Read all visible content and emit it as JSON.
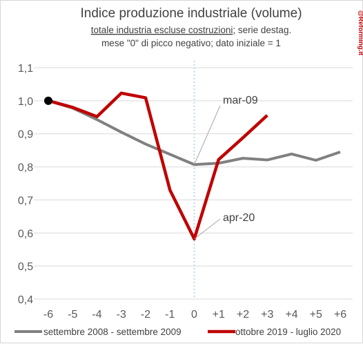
{
  "watermark": "@Reforming.it",
  "chart_data": {
    "type": "line",
    "title": "Indice produzione industriale (volume)",
    "subtitle_underlined": "totale industria escluse costruzioni",
    "subtitle_rest": "; serie destag.",
    "subtitle_line2": "mese \"0\" di picco negativo; dato iniziale = 1",
    "categories": [
      "-6",
      "-5",
      "-4",
      "-3",
      "-2",
      "-1",
      "0",
      "+1",
      "+2",
      "+3",
      "+4",
      "+5",
      "+6"
    ],
    "y_tick_labels": [
      "0,4",
      "0,5",
      "0,6",
      "0,7",
      "0,8",
      "0,9",
      "1,0",
      "1,1"
    ],
    "ylim": [
      0.4,
      1.1
    ],
    "grid": "horizontal",
    "legend_position": "bottom",
    "series": [
      {
        "name": "settembre 2008 - settembre 2009",
        "color": "#808080",
        "values": [
          1.0,
          0.978,
          0.943,
          0.905,
          0.869,
          0.838,
          0.807,
          0.811,
          0.826,
          0.821,
          0.839,
          0.82,
          0.845
        ]
      },
      {
        "name": "ottobre 2019 - luglio 2020",
        "color": "#c00000",
        "values": [
          1.0,
          0.98,
          0.952,
          1.023,
          1.009,
          0.73,
          0.582,
          0.822,
          0.888,
          0.956,
          null,
          null,
          null
        ]
      }
    ],
    "annotations": [
      {
        "text": "mar-09",
        "series": 0,
        "point": 6
      },
      {
        "text": "apr-20",
        "series": 1,
        "point": 6
      }
    ]
  }
}
